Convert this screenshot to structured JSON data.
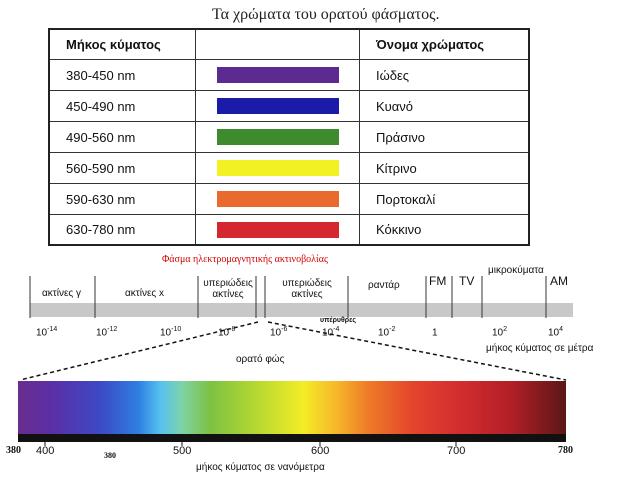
{
  "title": "Τα χρώματα του ορατού φάσματος.",
  "table": {
    "headers": [
      "Μήκος κύματος",
      "",
      "Όνομα χρώματος"
    ],
    "rows": [
      {
        "range": "380-450 nm",
        "name": "Ιώδες",
        "color": "#5d2a92"
      },
      {
        "range": "450-490 nm",
        "name": "Κυανό",
        "color": "#1c1aa8"
      },
      {
        "range": "490-560 nm",
        "name": "Πράσινο",
        "color": "#3d8a2f"
      },
      {
        "range": "560-590 nm",
        "name": "Κίτρινο",
        "color": "#f2f223"
      },
      {
        "range": "590-630 nm",
        "name": "Πορτοκαλί",
        "color": "#e86a2c"
      },
      {
        "range": "630-780 nm",
        "name": "Κόκκινο",
        "color": "#d4272f"
      }
    ]
  },
  "em": {
    "title": "Φάσμα ηλεκτρομαγνητικής ακτινοβολίας",
    "bands": [
      "ακτίνες γ",
      "ακτίνες x",
      "υπεριώδεις ακτίνες",
      "υπεριώδεις ακτίνες",
      "ραντάρ",
      "FM",
      "TV",
      "μικροκύματα",
      "AM"
    ],
    "ticks": [
      {
        "base": "10",
        "exp": "-14"
      },
      {
        "base": "10",
        "exp": "-12"
      },
      {
        "base": "10",
        "exp": "-10"
      },
      {
        "base": "10",
        "exp": "-8"
      },
      {
        "base": "10",
        "exp": "-6"
      },
      {
        "base": "10",
        "exp": "-4"
      },
      {
        "base": "10",
        "exp": "-2"
      },
      {
        "base": "1",
        "exp": ""
      },
      {
        "base": "10",
        "exp": "2"
      },
      {
        "base": "10",
        "exp": "4"
      }
    ],
    "axis_title": "μήκος κύματος σε μέτρα",
    "visible_label": "ορατό φώς",
    "note": "υπέρυθρες"
  },
  "visible": {
    "ticks": [
      "380",
      "400",
      "500",
      "600",
      "700",
      "780"
    ],
    "extra": "380",
    "axis_title": "μήκος κύματος σε νανόμετρα"
  }
}
